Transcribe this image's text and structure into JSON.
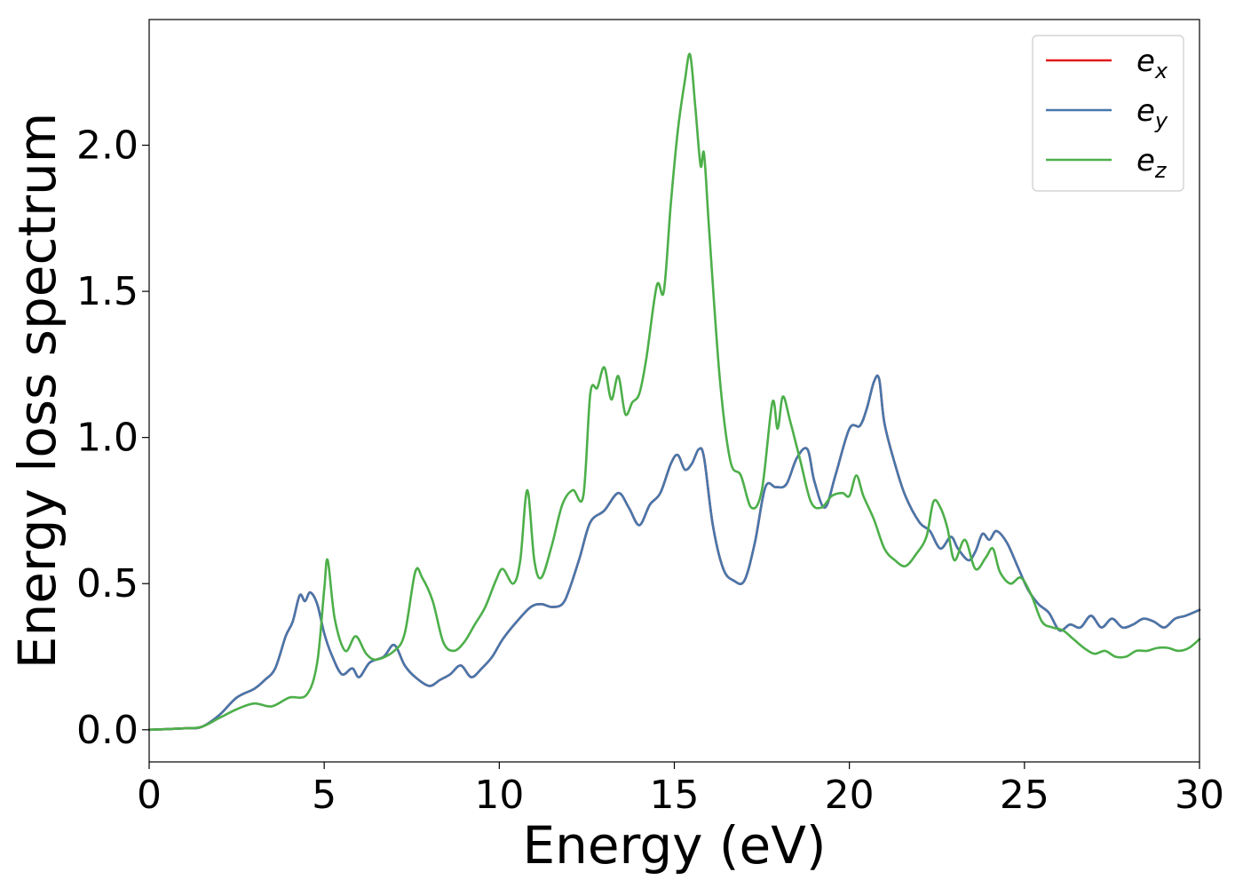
{
  "chart_data": {
    "type": "line",
    "xlabel": "Energy (eV)",
    "ylabel": "Energy loss spectrum",
    "xlim": [
      0,
      30
    ],
    "ylim": [
      -0.11,
      2.43
    ],
    "xticks": [
      0,
      5,
      10,
      15,
      20,
      25,
      30
    ],
    "yticks": [
      0.0,
      0.5,
      1.0,
      1.5,
      2.0
    ],
    "xtick_labels": [
      "0",
      "5",
      "10",
      "15",
      "20",
      "25",
      "30"
    ],
    "ytick_labels": [
      "0.0",
      "0.5",
      "1.0",
      "1.5",
      "2.0"
    ],
    "grid": false,
    "legend_position": "top-right",
    "series": [
      {
        "name": "e_x",
        "label_base": "e",
        "label_sub": "x",
        "color": "#e41a1c",
        "x": [
          0,
          1,
          1.5,
          2,
          2.5,
          3,
          3.3,
          3.6,
          3.9,
          4.1,
          4.3,
          4.45,
          4.6,
          4.8,
          5.0,
          5.2,
          5.5,
          5.8,
          6.0,
          6.3,
          6.7,
          7.0,
          7.3,
          7.6,
          8.0,
          8.3,
          8.6,
          8.9,
          9.2,
          9.5,
          9.8,
          10.1,
          10.5,
          10.9,
          11.2,
          11.5,
          11.8,
          12.0,
          12.3,
          12.6,
          13.0,
          13.4,
          13.7,
          14.0,
          14.3,
          14.6,
          14.9,
          15.1,
          15.3,
          15.5,
          15.7,
          15.85,
          16.1,
          16.4,
          16.7,
          17.0,
          17.3,
          17.6,
          17.9,
          18.2,
          18.5,
          18.8,
          19.0,
          19.3,
          19.6,
          20.0,
          20.3,
          20.5,
          20.7,
          20.85,
          21.0,
          21.3,
          21.6,
          22.0,
          22.3,
          22.6,
          22.9,
          23.1,
          23.4,
          23.6,
          23.8,
          24.0,
          24.2,
          24.5,
          24.8,
          25.1,
          25.4,
          25.7,
          26.0,
          26.3,
          26.6,
          26.9,
          27.2,
          27.5,
          27.8,
          28.1,
          28.4,
          28.7,
          29.0,
          29.3,
          29.6,
          30.0
        ],
        "values": [
          0,
          0.005,
          0.01,
          0.05,
          0.11,
          0.14,
          0.17,
          0.21,
          0.32,
          0.37,
          0.46,
          0.44,
          0.47,
          0.43,
          0.33,
          0.26,
          0.19,
          0.21,
          0.18,
          0.23,
          0.25,
          0.29,
          0.22,
          0.18,
          0.15,
          0.17,
          0.19,
          0.22,
          0.18,
          0.21,
          0.25,
          0.31,
          0.37,
          0.42,
          0.43,
          0.42,
          0.43,
          0.48,
          0.59,
          0.71,
          0.75,
          0.81,
          0.76,
          0.7,
          0.77,
          0.81,
          0.91,
          0.94,
          0.89,
          0.91,
          0.96,
          0.93,
          0.7,
          0.55,
          0.51,
          0.51,
          0.64,
          0.83,
          0.83,
          0.84,
          0.93,
          0.96,
          0.85,
          0.76,
          0.87,
          1.03,
          1.04,
          1.1,
          1.19,
          1.2,
          1.05,
          0.91,
          0.8,
          0.71,
          0.68,
          0.62,
          0.66,
          0.62,
          0.58,
          0.61,
          0.67,
          0.65,
          0.68,
          0.64,
          0.56,
          0.48,
          0.43,
          0.4,
          0.34,
          0.36,
          0.35,
          0.39,
          0.35,
          0.38,
          0.35,
          0.36,
          0.38,
          0.37,
          0.35,
          0.38,
          0.39,
          0.41
        ]
      },
      {
        "name": "e_y",
        "label_base": "e",
        "label_sub": "y",
        "color": "#4777ab",
        "x": [
          0,
          1,
          1.5,
          2,
          2.5,
          3,
          3.3,
          3.6,
          3.9,
          4.1,
          4.3,
          4.45,
          4.6,
          4.8,
          5.0,
          5.2,
          5.5,
          5.8,
          6.0,
          6.3,
          6.7,
          7.0,
          7.3,
          7.6,
          8.0,
          8.3,
          8.6,
          8.9,
          9.2,
          9.5,
          9.8,
          10.1,
          10.5,
          10.9,
          11.2,
          11.5,
          11.8,
          12.0,
          12.3,
          12.6,
          13.0,
          13.4,
          13.7,
          14.0,
          14.3,
          14.6,
          14.9,
          15.1,
          15.3,
          15.5,
          15.7,
          15.85,
          16.1,
          16.4,
          16.7,
          17.0,
          17.3,
          17.6,
          17.9,
          18.2,
          18.5,
          18.8,
          19.0,
          19.3,
          19.6,
          20.0,
          20.3,
          20.5,
          20.7,
          20.85,
          21.0,
          21.3,
          21.6,
          22.0,
          22.3,
          22.6,
          22.9,
          23.1,
          23.4,
          23.6,
          23.8,
          24.0,
          24.2,
          24.5,
          24.8,
          25.1,
          25.4,
          25.7,
          26.0,
          26.3,
          26.6,
          26.9,
          27.2,
          27.5,
          27.8,
          28.1,
          28.4,
          28.7,
          29.0,
          29.3,
          29.6,
          30.0
        ],
        "values": [
          0,
          0.005,
          0.01,
          0.05,
          0.11,
          0.14,
          0.17,
          0.21,
          0.32,
          0.37,
          0.46,
          0.44,
          0.47,
          0.43,
          0.33,
          0.26,
          0.19,
          0.21,
          0.18,
          0.23,
          0.25,
          0.29,
          0.22,
          0.18,
          0.15,
          0.17,
          0.19,
          0.22,
          0.18,
          0.21,
          0.25,
          0.31,
          0.37,
          0.42,
          0.43,
          0.42,
          0.43,
          0.48,
          0.59,
          0.71,
          0.75,
          0.81,
          0.76,
          0.7,
          0.77,
          0.81,
          0.91,
          0.94,
          0.89,
          0.91,
          0.96,
          0.93,
          0.7,
          0.55,
          0.51,
          0.51,
          0.64,
          0.83,
          0.83,
          0.84,
          0.93,
          0.96,
          0.85,
          0.76,
          0.87,
          1.03,
          1.04,
          1.1,
          1.19,
          1.2,
          1.05,
          0.91,
          0.8,
          0.71,
          0.68,
          0.62,
          0.66,
          0.62,
          0.58,
          0.61,
          0.67,
          0.65,
          0.68,
          0.64,
          0.56,
          0.48,
          0.43,
          0.4,
          0.34,
          0.36,
          0.35,
          0.39,
          0.35,
          0.38,
          0.35,
          0.36,
          0.38,
          0.37,
          0.35,
          0.38,
          0.39,
          0.41
        ]
      },
      {
        "name": "e_z",
        "label_base": "e",
        "label_sub": "z",
        "color": "#4daf4a",
        "x": [
          0,
          1,
          1.5,
          2,
          2.5,
          3,
          3.5,
          4,
          4.5,
          4.8,
          5.0,
          5.1,
          5.3,
          5.6,
          5.9,
          6.2,
          6.5,
          7.0,
          7.3,
          7.6,
          7.8,
          8.1,
          8.4,
          8.7,
          9.0,
          9.3,
          9.6,
          9.9,
          10.1,
          10.4,
          10.6,
          10.8,
          11.0,
          11.2,
          11.5,
          11.8,
          12.1,
          12.4,
          12.6,
          12.8,
          13.0,
          13.2,
          13.4,
          13.6,
          13.8,
          14.0,
          14.2,
          14.5,
          14.7,
          14.9,
          15.1,
          15.3,
          15.45,
          15.6,
          15.75,
          15.85,
          16.0,
          16.3,
          16.6,
          16.9,
          17.2,
          17.5,
          17.8,
          17.95,
          18.1,
          18.3,
          18.6,
          18.9,
          19.2,
          19.5,
          19.8,
          20.0,
          20.2,
          20.4,
          20.7,
          21.0,
          21.3,
          21.6,
          21.9,
          22.2,
          22.4,
          22.6,
          22.8,
          23.0,
          23.3,
          23.6,
          23.9,
          24.1,
          24.3,
          24.6,
          24.9,
          25.2,
          25.5,
          25.8,
          26.1,
          26.4,
          26.7,
          27.0,
          27.3,
          27.6,
          27.9,
          28.2,
          28.5,
          28.8,
          29.1,
          29.4,
          29.7,
          30.0
        ],
        "values": [
          0,
          0.005,
          0.01,
          0.04,
          0.07,
          0.09,
          0.08,
          0.11,
          0.12,
          0.23,
          0.48,
          0.58,
          0.38,
          0.27,
          0.32,
          0.26,
          0.24,
          0.27,
          0.33,
          0.54,
          0.52,
          0.44,
          0.3,
          0.27,
          0.3,
          0.36,
          0.42,
          0.51,
          0.55,
          0.5,
          0.58,
          0.82,
          0.58,
          0.52,
          0.63,
          0.77,
          0.82,
          0.8,
          1.15,
          1.17,
          1.24,
          1.13,
          1.21,
          1.08,
          1.12,
          1.15,
          1.27,
          1.52,
          1.5,
          1.8,
          2.05,
          2.22,
          2.31,
          2.13,
          1.93,
          1.97,
          1.7,
          1.2,
          0.92,
          0.87,
          0.76,
          0.82,
          1.12,
          1.03,
          1.14,
          1.06,
          0.92,
          0.78,
          0.76,
          0.8,
          0.81,
          0.8,
          0.87,
          0.8,
          0.72,
          0.62,
          0.58,
          0.56,
          0.6,
          0.66,
          0.78,
          0.76,
          0.69,
          0.58,
          0.65,
          0.55,
          0.59,
          0.62,
          0.54,
          0.5,
          0.52,
          0.46,
          0.37,
          0.35,
          0.34,
          0.31,
          0.28,
          0.26,
          0.27,
          0.25,
          0.25,
          0.27,
          0.27,
          0.28,
          0.28,
          0.27,
          0.28,
          0.31
        ]
      }
    ]
  }
}
